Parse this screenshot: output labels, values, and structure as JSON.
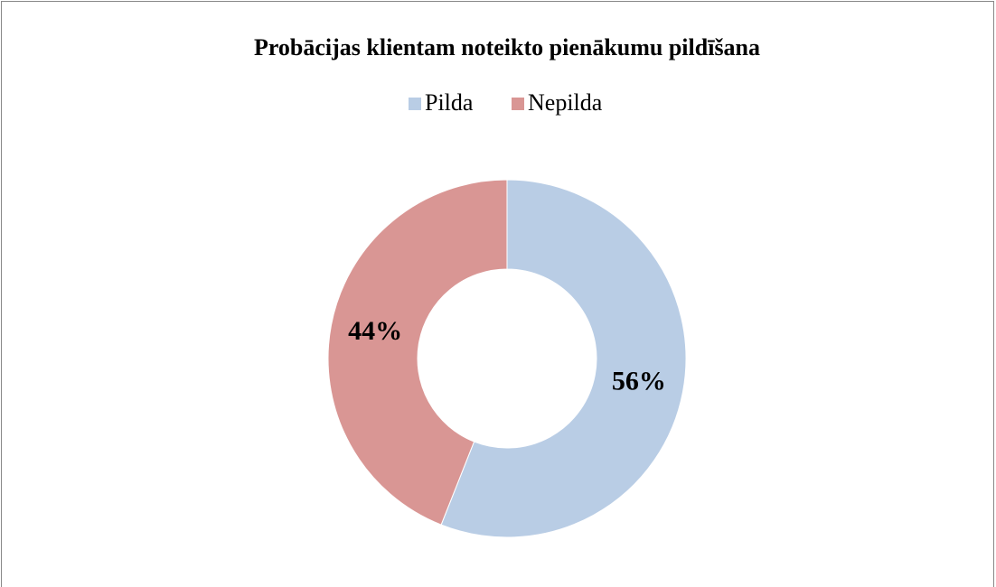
{
  "chart_data": {
    "type": "pie",
    "title": "Probācijas klientam noteikto pienākumu pildīšana",
    "categories": [
      "Pilda",
      "Nepilda"
    ],
    "values": [
      56,
      44
    ],
    "value_labels": [
      "56%",
      "44%"
    ],
    "colors": [
      "#b9cde5",
      "#d99694"
    ],
    "donut": true,
    "legend": "top"
  }
}
